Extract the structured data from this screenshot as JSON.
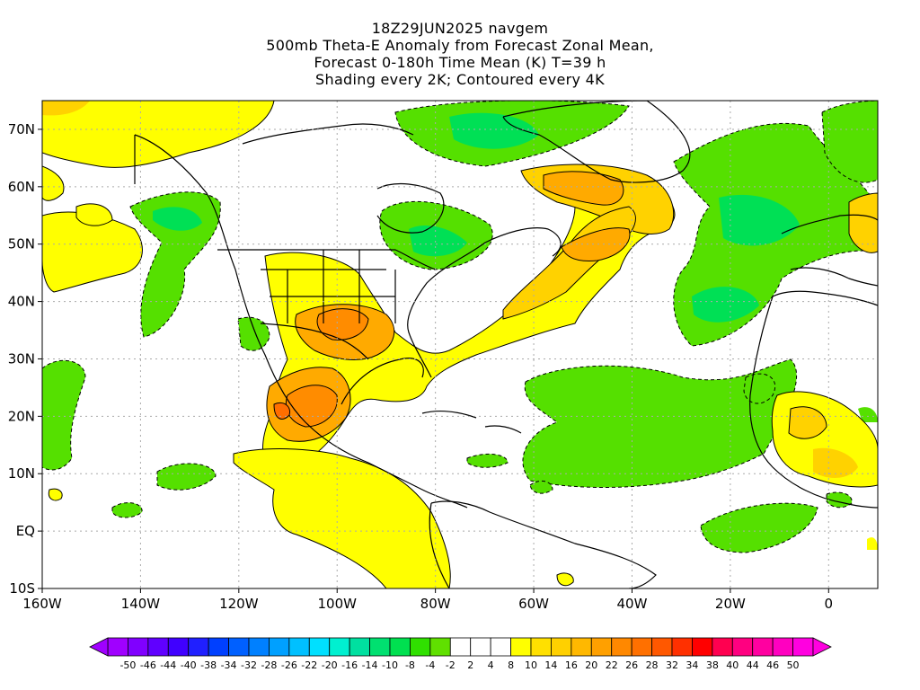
{
  "title": {
    "line1": "18Z29JUN2025 navgem",
    "line2": "500mb Theta-E Anomaly from Forecast Zonal Mean,",
    "line3": "Forecast 0-180h Time Mean (K) T=39 h",
    "line4": "Shading every 2K; Contoured every 4K"
  },
  "map": {
    "lat_labels": [
      "70N",
      "60N",
      "50N",
      "40N",
      "30N",
      "20N",
      "10N",
      "EQ",
      "10S"
    ],
    "lon_labels": [
      "160W",
      "140W",
      "120W",
      "100W",
      "80W",
      "60W",
      "40W",
      "20W",
      "0"
    ],
    "lon_range": [
      -160,
      10
    ],
    "lat_range": [
      -10,
      75
    ],
    "colors": {
      "y": "#ffff00",
      "y2": "#ffd200",
      "o1": "#ffaa00",
      "o2": "#ff8c00",
      "o3": "#ff6e00",
      "g1": "#55e000",
      "g2": "#00e055",
      "g3": "#00e0a0"
    }
  },
  "colorbar": {
    "labels": [
      "-50",
      "-46",
      "-44",
      "-40",
      "-38",
      "-34",
      "-32",
      "-28",
      "-26",
      "-22",
      "-20",
      "-16",
      "-14",
      "-10",
      "-8",
      "-4",
      "-2",
      "2",
      "4",
      "8",
      "10",
      "14",
      "16",
      "20",
      "22",
      "26",
      "28",
      "32",
      "34",
      "38",
      "40",
      "44",
      "46",
      "50"
    ],
    "colors": [
      "#a000ff",
      "#8000ff",
      "#6000ff",
      "#4000ff",
      "#2020ff",
      "#0040ff",
      "#0060ff",
      "#0080ff",
      "#00a0ff",
      "#00c0ff",
      "#00e0ff",
      "#00f0d0",
      "#00e0a0",
      "#00e070",
      "#00e050",
      "#30e000",
      "#60e000",
      "#ffffff",
      "#ffffff",
      "#ffffff",
      "#ffff00",
      "#ffe000",
      "#ffd000",
      "#ffb800",
      "#ffa000",
      "#ff8800",
      "#ff7000",
      "#ff5800",
      "#ff3000",
      "#ff0000",
      "#ff0050",
      "#ff0080",
      "#ff00a0",
      "#ff00c0",
      "#ff00e0"
    ]
  }
}
